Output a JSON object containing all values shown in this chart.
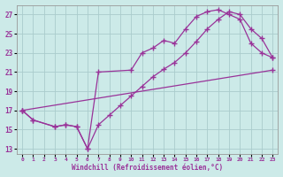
{
  "xlabel": "Windchill (Refroidissement éolien,°C)",
  "xlim": [
    -0.5,
    23.5
  ],
  "ylim": [
    12.5,
    28.0
  ],
  "xticks": [
    0,
    1,
    2,
    3,
    4,
    5,
    6,
    7,
    8,
    9,
    10,
    11,
    12,
    13,
    14,
    15,
    16,
    17,
    18,
    19,
    20,
    21,
    22,
    23
  ],
  "yticks": [
    13,
    15,
    17,
    19,
    21,
    23,
    25,
    27
  ],
  "bg_color": "#cceae8",
  "grid_color": "#aacccc",
  "line_color": "#993399",
  "lines": [
    {
      "x": [
        0,
        23
      ],
      "y": [
        17.0,
        21.2
      ]
    },
    {
      "x": [
        0,
        1,
        3,
        4,
        5,
        6,
        7,
        8,
        9,
        10,
        11,
        12,
        13,
        14,
        15,
        16,
        17,
        18,
        19,
        20,
        21,
        22,
        23
      ],
      "y": [
        17.0,
        16.0,
        15.3,
        15.5,
        15.3,
        13.0,
        15.5,
        16.5,
        17.5,
        18.5,
        19.5,
        20.5,
        21.3,
        22.0,
        23.0,
        24.2,
        25.5,
        26.5,
        27.3,
        27.0,
        25.5,
        24.5,
        22.5
      ]
    },
    {
      "x": [
        0,
        1,
        3,
        4,
        5,
        6,
        7,
        10,
        11,
        12,
        13,
        14,
        15,
        16,
        17,
        18,
        19,
        20,
        21,
        22,
        23
      ],
      "y": [
        17.0,
        16.0,
        15.3,
        15.5,
        15.3,
        13.0,
        21.0,
        21.2,
        23.0,
        23.5,
        24.3,
        24.0,
        25.5,
        26.8,
        27.3,
        27.5,
        27.0,
        26.5,
        24.0,
        23.0,
        22.5
      ]
    }
  ]
}
